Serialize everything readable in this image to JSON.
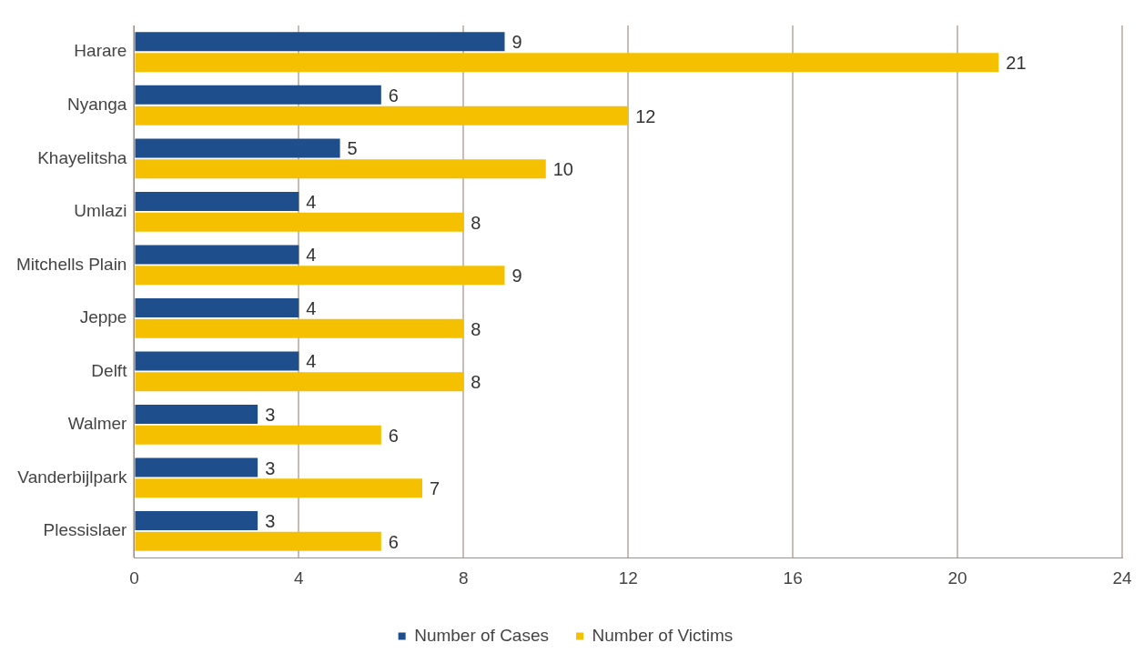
{
  "chart_data": {
    "type": "bar",
    "orientation": "horizontal",
    "categories": [
      "Harare",
      "Nyanga",
      "Khayelitsha",
      "Umlazi",
      "Mitchells Plain",
      "Jeppe",
      "Delft",
      "Walmer",
      "Vanderbijlpark",
      "Plessislaer"
    ],
    "series": [
      {
        "name": "Number of Cases",
        "color": "#1f4e8c",
        "values": [
          9,
          6,
          5,
          4,
          4,
          4,
          4,
          3,
          3,
          3
        ]
      },
      {
        "name": "Number of Victims",
        "color": "#f5c000",
        "values": [
          21,
          12,
          10,
          8,
          9,
          8,
          8,
          6,
          7,
          6
        ]
      }
    ],
    "xlim": [
      0,
      24
    ],
    "xticks": [
      0,
      4,
      8,
      12,
      16,
      20,
      24
    ],
    "grid": "x",
    "legend": "bottom",
    "data_labels": true
  }
}
